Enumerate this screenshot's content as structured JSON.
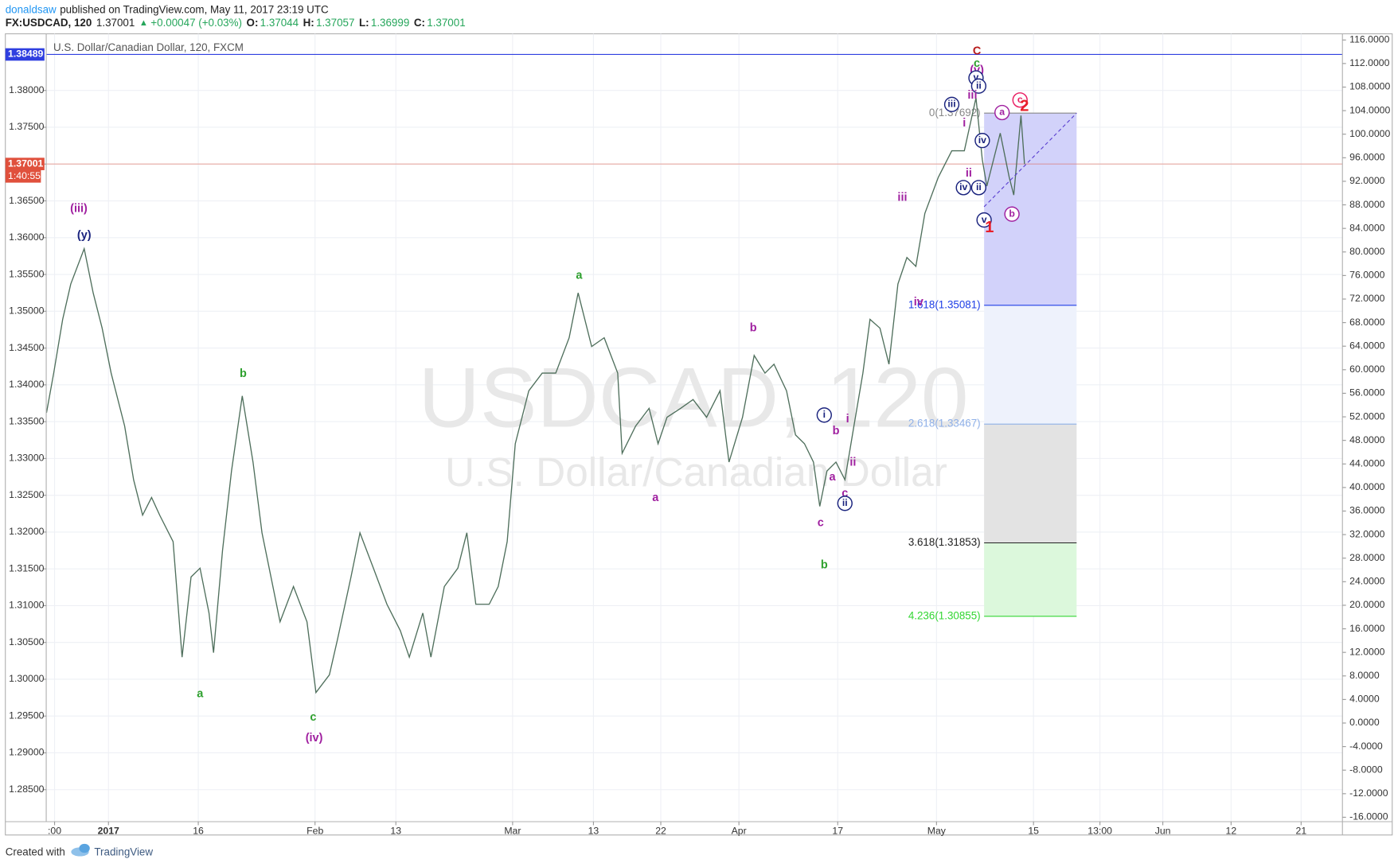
{
  "header": {
    "author": "donaldsaw",
    "published": "published on TradingView.com, May 11, 2017 23:19 UTC"
  },
  "quote": {
    "symbol": "FX:USDCAD, 120",
    "last": "1.37001",
    "arrow": "▲",
    "change": "+0.00047 (+0.03%)",
    "o_label": "O:",
    "o": "1.37044",
    "h_label": "H:",
    "h": "1.37057",
    "l_label": "L:",
    "l": "1.36999",
    "c_label": "C:",
    "c": "1.37001"
  },
  "chart_data": {
    "type": "line",
    "title": "U.S. Dollar/Canadian Dollar, 120, FXCM",
    "watermark": "USDCAD, 120",
    "watermark_subtitle": "U.S. Dollar/Canadian Dollar",
    "color": "#4f6f5c",
    "x": [
      -6.9,
      -6.1,
      -5.1,
      -4.2,
      -2.7,
      -1.7,
      -0.7,
      0.3,
      1.8,
      2.8,
      3.8,
      4.8,
      5.7,
      7.2,
      8.2,
      9.2,
      10.2,
      11.2,
      11.7,
      12.7,
      13.7,
      14.9,
      16.1,
      17.1,
      18.1,
      19.1,
      20.6,
      22.1,
      23.1,
      24.6,
      25.5,
      27.0,
      28.0,
      29.5,
      31.0,
      32.5,
      33.5,
      35.0,
      35.9,
      37.4,
      38.9,
      39.9,
      40.9,
      42.4,
      43.4,
      44.4,
      45.3,
      46.8,
      48.3,
      49.8,
      51.3,
      52.3,
      53.8,
      55.2,
      56.7,
      57.2,
      58.7,
      60.2,
      61.2,
      62.2,
      63.7,
      65.1,
      66.6,
      68.1,
      69.1,
      70.6,
      71.9,
      73.1,
      74.1,
      75.5,
      76.5,
      77.5,
      78.5,
      79.2,
      80.0,
      81.0,
      82.0,
      83.0,
      84.0,
      84.8,
      85.9,
      86.9,
      87.9,
      88.9,
      89.9,
      90.9,
      92.4,
      93.9,
      95.3,
      96.6,
      97.3,
      97.8,
      99.3,
      100.3,
      100.8,
      101.6,
      102.0
    ],
    "values": [
      1.3362,
      1.3416,
      1.3489,
      1.3537,
      1.3585,
      1.3525,
      1.3477,
      1.3416,
      1.3344,
      1.3271,
      1.3223,
      1.3247,
      1.3223,
      1.3187,
      1.303,
      1.3139,
      1.3151,
      1.309,
      1.3036,
      1.3175,
      1.3283,
      1.3385,
      1.3295,
      1.3199,
      1.3139,
      1.3078,
      1.3126,
      1.3078,
      1.2982,
      1.3006,
      1.3054,
      1.3139,
      1.3199,
      1.3151,
      1.3102,
      1.3066,
      1.303,
      1.309,
      1.303,
      1.3126,
      1.3151,
      1.3199,
      1.3102,
      1.3102,
      1.3126,
      1.3187,
      1.332,
      1.3392,
      1.3416,
      1.3416,
      1.3464,
      1.3525,
      1.3452,
      1.3464,
      1.3416,
      1.3307,
      1.3344,
      1.3368,
      1.332,
      1.3356,
      1.3368,
      1.338,
      1.3356,
      1.3392,
      1.3295,
      1.3356,
      1.344,
      1.3416,
      1.3428,
      1.3392,
      1.3332,
      1.332,
      1.3295,
      1.3235,
      1.3283,
      1.3295,
      1.3271,
      1.3344,
      1.3416,
      1.3489,
      1.3477,
      1.3428,
      1.3537,
      1.3573,
      1.3561,
      1.3633,
      1.3682,
      1.3718,
      1.3718,
      1.379,
      1.3706,
      1.367,
      1.3742,
      1.3682,
      1.3658,
      1.3766,
      1.37
    ],
    "xlim": [
      -6.93,
      137.4
    ],
    "xticks": [
      {
        "value": -6,
        "label": ":00"
      },
      {
        "value": 0,
        "label": "2017"
      },
      {
        "value": 10,
        "label": "16"
      },
      {
        "value": 23,
        "label": "Feb"
      },
      {
        "value": 32,
        "label": "13"
      },
      {
        "value": 45,
        "label": "Mar"
      },
      {
        "value": 54,
        "label": "13"
      },
      {
        "value": 61.5,
        "label": "22"
      },
      {
        "value": 70.2,
        "label": "Apr"
      },
      {
        "value": 81.2,
        "label": "17"
      },
      {
        "value": 92.2,
        "label": "May"
      },
      {
        "value": 103,
        "label": "15"
      },
      {
        "value": 110.4,
        "label": "13:00"
      },
      {
        "value": 117.4,
        "label": "Jun"
      },
      {
        "value": 125,
        "label": "12"
      },
      {
        "value": 132.8,
        "label": "21"
      }
    ],
    "ylim": [
      1.28065,
      1.3877
    ],
    "yticks": [
      {
        "value": 1.285,
        "label": "1.28500"
      },
      {
        "value": 1.29,
        "label": "1.29000"
      },
      {
        "value": 1.295,
        "label": "1.29500"
      },
      {
        "value": 1.3,
        "label": "1.30000"
      },
      {
        "value": 1.305,
        "label": "1.30500"
      },
      {
        "value": 1.31,
        "label": "1.31000"
      },
      {
        "value": 1.315,
        "label": "1.31500"
      },
      {
        "value": 1.32,
        "label": "1.32000"
      },
      {
        "value": 1.325,
        "label": "1.32500"
      },
      {
        "value": 1.33,
        "label": "1.33000"
      },
      {
        "value": 1.335,
        "label": "1.33500"
      },
      {
        "value": 1.34,
        "label": "1.34000"
      },
      {
        "value": 1.345,
        "label": "1.34500"
      },
      {
        "value": 1.35,
        "label": "1.35000"
      },
      {
        "value": 1.355,
        "label": "1.35500"
      },
      {
        "value": 1.36,
        "label": "1.36000"
      },
      {
        "value": 1.365,
        "label": "1.36500"
      },
      {
        "value": 1.37,
        "label": "1.37000"
      },
      {
        "value": 1.375,
        "label": "1.37500"
      },
      {
        "value": 1.38,
        "label": "1.38000"
      }
    ],
    "y2lim": [
      -16.75,
      117.05
    ],
    "y2ticks": [
      {
        "value": 116,
        "label": "116.0000"
      },
      {
        "value": 112,
        "label": "112.0000"
      },
      {
        "value": 108,
        "label": "108.0000"
      },
      {
        "value": 104,
        "label": "104.0000"
      },
      {
        "value": 100,
        "label": "100.0000"
      },
      {
        "value": 96,
        "label": "96.0000"
      },
      {
        "value": 92,
        "label": "92.0000"
      },
      {
        "value": 88,
        "label": "88.0000"
      },
      {
        "value": 84,
        "label": "84.0000"
      },
      {
        "value": 80,
        "label": "80.0000"
      },
      {
        "value": 76,
        "label": "76.0000"
      },
      {
        "value": 72,
        "label": "72.0000"
      },
      {
        "value": 68,
        "label": "68.0000"
      },
      {
        "value": 64,
        "label": "64.0000"
      },
      {
        "value": 60,
        "label": "60.0000"
      },
      {
        "value": 56,
        "label": "56.0000"
      },
      {
        "value": 52,
        "label": "52.0000"
      },
      {
        "value": 48,
        "label": "48.0000"
      },
      {
        "value": 44,
        "label": "44.0000"
      },
      {
        "value": 40,
        "label": "40.0000"
      },
      {
        "value": 36,
        "label": "36.0000"
      },
      {
        "value": 32,
        "label": "32.0000"
      },
      {
        "value": 28,
        "label": "28.0000"
      },
      {
        "value": 24,
        "label": "24.0000"
      },
      {
        "value": 20,
        "label": "20.0000"
      },
      {
        "value": 16,
        "label": "16.0000"
      },
      {
        "value": 12,
        "label": "12.0000"
      },
      {
        "value": 8,
        "label": "8.0000"
      },
      {
        "value": 4,
        "label": "4.0000"
      },
      {
        "value": 0,
        "label": "0.0000"
      },
      {
        "value": -4,
        "label": "-4.0000"
      },
      {
        "value": -8,
        "label": "-8.0000"
      },
      {
        "value": -12,
        "label": "-12.0000"
      },
      {
        "value": -16,
        "label": "-16.0000"
      }
    ],
    "grid": true,
    "hlines": [
      {
        "value": 1.38489,
        "label": "1.38489",
        "color": "#2f3fe0"
      },
      {
        "value": 1.37001,
        "label": "1.37001",
        "sublabel": "1:40:55",
        "color": "#e0503c"
      }
    ],
    "fib": {
      "x_range": [
        97.5,
        107.8
      ],
      "levels": [
        {
          "value": 1.37692,
          "label": "0(1.37692)",
          "color": "#888888"
        },
        {
          "value": 1.35081,
          "label": "1.618(1.35081)",
          "color": "#1e3ee6",
          "fill": "#d2d2fa"
        },
        {
          "value": 1.33467,
          "label": "2.618(1.33467)",
          "color": "#8fb0e8",
          "fill": "#eef2fc"
        },
        {
          "value": 1.31853,
          "label": "3.618(1.31853)",
          "color": "#222222",
          "fill": "#e3e3e3"
        },
        {
          "value": 1.30855,
          "label": "4.236(1.30855)",
          "color": "#33d633",
          "fill": "#dcf8dc"
        }
      ]
    },
    "trendline": {
      "x": [
        97.5,
        107.8
      ],
      "values": [
        1.3642,
        1.37692
      ],
      "color": "#5a3fd0"
    },
    "annotations": [
      {
        "text": "(iii)",
        "x": -3.3,
        "y": 1.3639,
        "color": "#a020a0"
      },
      {
        "text": "(y)",
        "x": -2.7,
        "y": 1.3603,
        "color": "#1a237e"
      },
      {
        "text": "a",
        "x": 10.2,
        "y": 1.298,
        "color": "#2ea02e"
      },
      {
        "text": "b",
        "x": 15.0,
        "y": 1.3415,
        "color": "#2ea02e"
      },
      {
        "text": "c",
        "x": 22.8,
        "y": 1.2948,
        "color": "#2ea02e"
      },
      {
        "text": "(iv)",
        "x": 22.9,
        "y": 1.292,
        "color": "#a020a0"
      },
      {
        "text": "a",
        "x": 52.4,
        "y": 1.3548,
        "color": "#2ea02e"
      },
      {
        "text": "a",
        "x": 60.9,
        "y": 1.3246,
        "color": "#a020a0"
      },
      {
        "text": "b",
        "x": 71.8,
        "y": 1.3477,
        "color": "#a020a0"
      },
      {
        "text": "i",
        "x": 79.7,
        "y": 1.3359,
        "color": "#1a237e",
        "circle": true
      },
      {
        "text": "b",
        "x": 81.0,
        "y": 1.3337,
        "color": "#a020a0"
      },
      {
        "text": "i",
        "x": 82.3,
        "y": 1.3353,
        "color": "#a020a0"
      },
      {
        "text": "a",
        "x": 80.6,
        "y": 1.3274,
        "color": "#a020a0"
      },
      {
        "text": "ii",
        "x": 82.9,
        "y": 1.3294,
        "color": "#a020a0"
      },
      {
        "text": "c",
        "x": 82.0,
        "y": 1.3252,
        "color": "#a020a0"
      },
      {
        "text": "ii",
        "x": 82.0,
        "y": 1.3239,
        "color": "#1a237e",
        "circle": true
      },
      {
        "text": "c",
        "x": 79.3,
        "y": 1.3212,
        "color": "#a020a0"
      },
      {
        "text": "b",
        "x": 79.7,
        "y": 1.3155,
        "color": "#2ea02e"
      },
      {
        "text": "iii",
        "x": 88.4,
        "y": 1.3654,
        "color": "#a020a0"
      },
      {
        "text": "iv",
        "x": 90.2,
        "y": 1.3512,
        "color": "#a020a0"
      },
      {
        "text": "C",
        "x": 96.7,
        "y": 1.3853,
        "color": "#b71c1c"
      },
      {
        "text": "c",
        "x": 96.7,
        "y": 1.3836,
        "color": "#2ea02e"
      },
      {
        "text": "(v)",
        "x": 96.7,
        "y": 1.3827,
        "color": "#a020a0"
      },
      {
        "text": "v",
        "x": 96.6,
        "y": 1.3817,
        "color": "#1a237e",
        "circle": true
      },
      {
        "text": "ii",
        "x": 96.9,
        "y": 1.3806,
        "color": "#1a237e",
        "circle": true
      },
      {
        "text": "iii",
        "x": 96.2,
        "y": 1.3793,
        "color": "#a020a0"
      },
      {
        "text": "iii",
        "x": 93.9,
        "y": 1.3781,
        "color": "#1a237e",
        "circle": true
      },
      {
        "text": "i",
        "x": 95.3,
        "y": 1.3755,
        "color": "#a020a0"
      },
      {
        "text": "iv",
        "x": 97.3,
        "y": 1.3732,
        "color": "#1a237e",
        "circle": true
      },
      {
        "text": "ii",
        "x": 95.8,
        "y": 1.3687,
        "color": "#a020a0"
      },
      {
        "text": "iv",
        "x": 95.2,
        "y": 1.3668,
        "color": "#1a237e",
        "circle": true
      },
      {
        "text": "ii",
        "x": 96.9,
        "y": 1.3668,
        "color": "#1a237e",
        "circle": true
      },
      {
        "text": "v",
        "x": 97.5,
        "y": 1.3624,
        "color": "#1a237e",
        "circle": true
      },
      {
        "text": "1",
        "x": 98.1,
        "y": 1.3613,
        "color": "#e8202a",
        "big": true
      },
      {
        "text": "a",
        "x": 99.5,
        "y": 1.377,
        "color": "#a020a0",
        "circle": true
      },
      {
        "text": "c",
        "x": 101.5,
        "y": 1.3787,
        "color": "#e91e63",
        "circle": true
      },
      {
        "text": "2",
        "x": 102.0,
        "y": 1.3778,
        "color": "#e8202a",
        "big": true
      },
      {
        "text": "b",
        "x": 100.6,
        "y": 1.3632,
        "color": "#a020a0",
        "circle": true
      }
    ]
  },
  "footer": {
    "created": "Created with",
    "brand": "TradingView"
  }
}
